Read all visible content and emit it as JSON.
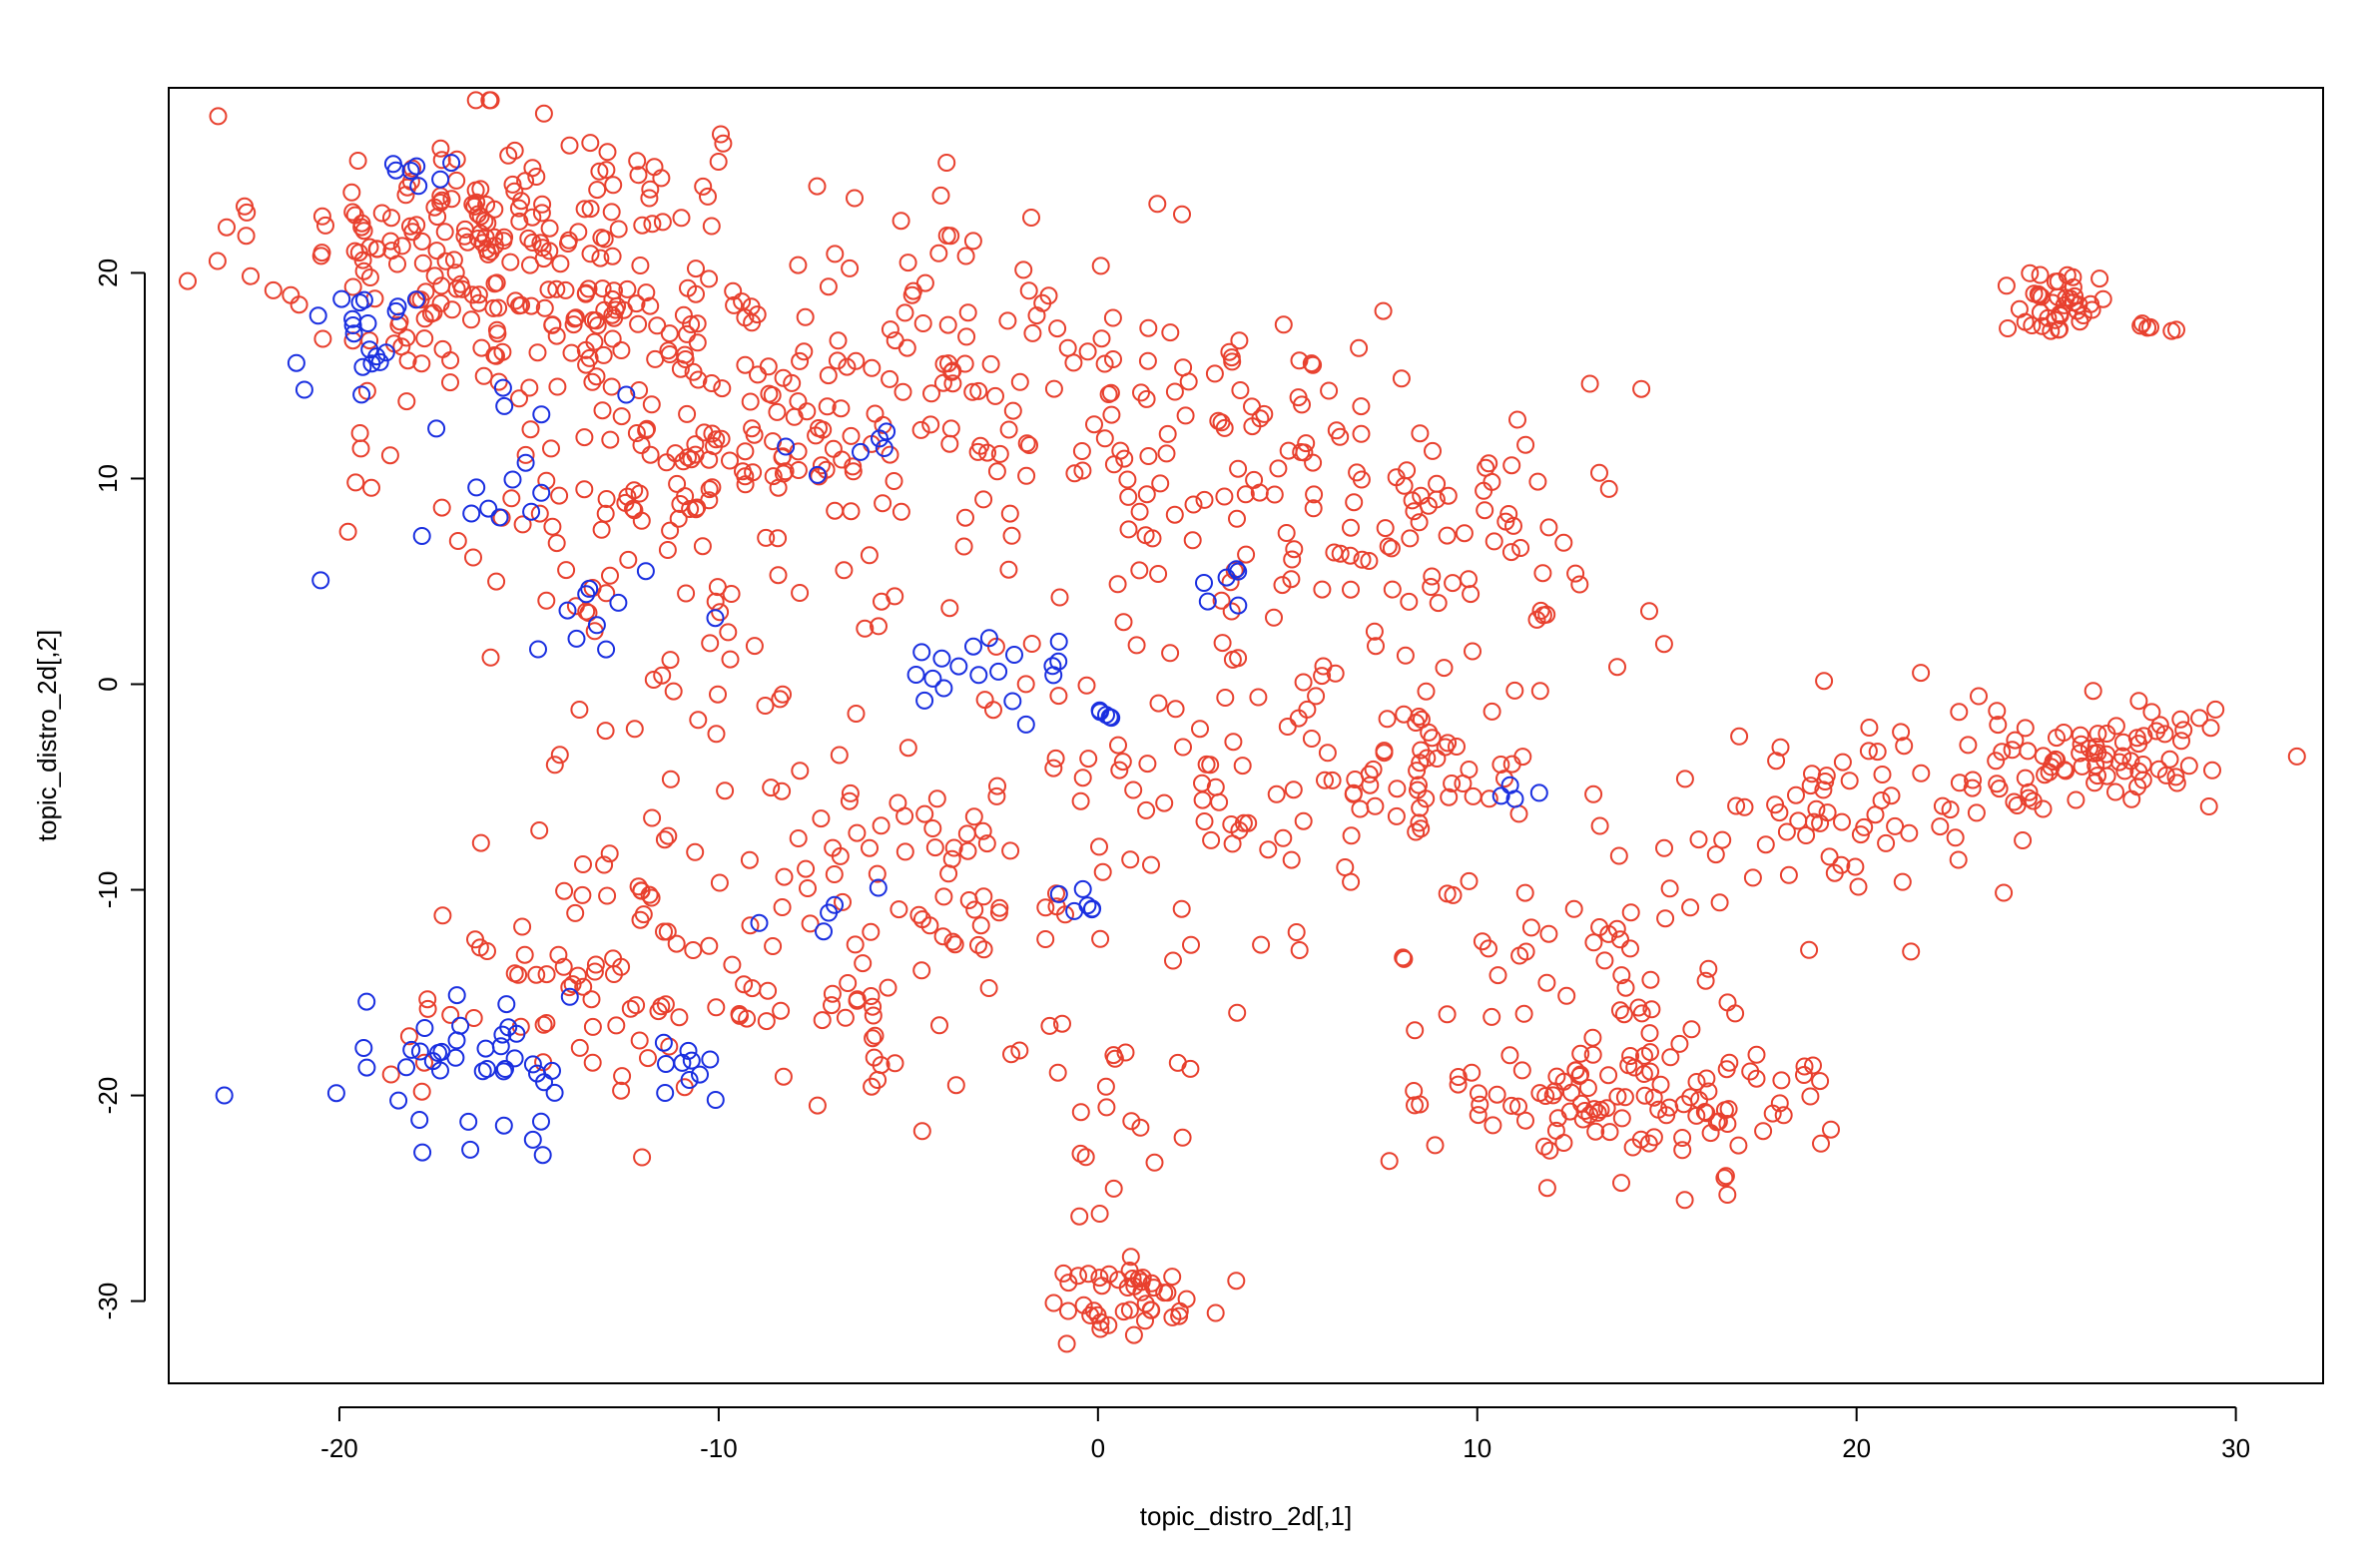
{
  "chart_data": {
    "type": "scatter",
    "title": "",
    "xlabel": "topic_distro_2d[,1]",
    "ylabel": "topic_distro_2d[,2]",
    "xlim": [
      -24.5,
      32.3
    ],
    "ylim": [
      -34.0,
      29.0
    ],
    "xticks": [
      -20,
      -10,
      0,
      10,
      20,
      30
    ],
    "xtick_labels": [
      "-20",
      "-10",
      "0",
      "10",
      "20",
      "30"
    ],
    "yticks": [
      -30,
      -20,
      -10,
      0,
      10,
      20
    ],
    "ytick_labels": [
      "-30",
      "-20",
      "-10",
      "0",
      "10",
      "20"
    ],
    "grid": false,
    "marker": "open-circle",
    "series": [
      {
        "color": "#e8402e",
        "clusters": [
          {
            "cx": -16.0,
            "cy": 21.0,
            "sx": 3.5,
            "sy": 4.0,
            "n": 230
          },
          {
            "cx": -11.0,
            "cy": 11.0,
            "sx": 4.0,
            "sy": 5.0,
            "n": 150
          },
          {
            "cx": -4.0,
            "cy": 16.0,
            "sx": 5.0,
            "sy": 5.0,
            "n": 130
          },
          {
            "cx": 4.5,
            "cy": 10.0,
            "sx": 4.0,
            "sy": 5.0,
            "n": 110
          },
          {
            "cx": 10.0,
            "cy": 6.0,
            "sx": 2.5,
            "sy": 4.0,
            "n": 50
          },
          {
            "cx": -6.0,
            "cy": -5.0,
            "sx": 5.0,
            "sy": 7.0,
            "n": 130
          },
          {
            "cx": 4.0,
            "cy": -6.0,
            "sx": 4.0,
            "sy": 5.0,
            "n": 70
          },
          {
            "cx": 8.5,
            "cy": -4.0,
            "sx": 2.0,
            "sy": 2.0,
            "n": 40
          },
          {
            "cx": -13.0,
            "cy": -15.0,
            "sx": 3.0,
            "sy": 3.5,
            "n": 70
          },
          {
            "cx": -5.0,
            "cy": -17.0,
            "sx": 3.0,
            "sy": 3.0,
            "n": 40
          },
          {
            "cx": 0.8,
            "cy": -30.0,
            "sx": 1.3,
            "sy": 1.3,
            "n": 45
          },
          {
            "cx": 1.0,
            "cy": -22.0,
            "sx": 0.8,
            "sy": 2.0,
            "n": 10
          },
          {
            "cx": 14.0,
            "cy": -20.0,
            "sx": 3.0,
            "sy": 2.2,
            "n": 120
          },
          {
            "cx": 13.5,
            "cy": -12.0,
            "sx": 2.5,
            "sy": 3.0,
            "n": 40
          },
          {
            "cx": 26.5,
            "cy": -3.5,
            "sx": 2.3,
            "sy": 1.6,
            "n": 80
          },
          {
            "cx": 20.0,
            "cy": -6.5,
            "sx": 3.0,
            "sy": 2.5,
            "n": 70
          },
          {
            "cx": 25.3,
            "cy": 18.5,
            "sx": 0.8,
            "sy": 1.0,
            "n": 40
          },
          {
            "cx": 27.8,
            "cy": 17.3,
            "sx": 0.3,
            "sy": 0.2,
            "n": 6
          }
        ]
      },
      {
        "color": "#1a2fe0",
        "clusters": [
          {
            "cx": -19.5,
            "cy": 17.0,
            "sx": 1.2,
            "sy": 1.5,
            "n": 20
          },
          {
            "cx": -17.5,
            "cy": 25.3,
            "sx": 0.8,
            "sy": 0.6,
            "n": 7
          },
          {
            "cx": -15.5,
            "cy": 11.0,
            "sx": 1.5,
            "sy": 2.5,
            "n": 15
          },
          {
            "cx": -16.0,
            "cy": -18.5,
            "sx": 2.0,
            "sy": 2.0,
            "n": 45
          },
          {
            "cx": -13.0,
            "cy": 2.0,
            "sx": 1.5,
            "sy": 1.5,
            "n": 10
          },
          {
            "cx": -4.0,
            "cy": 0.5,
            "sx": 2.0,
            "sy": 1.5,
            "n": 18
          },
          {
            "cx": 0.0,
            "cy": -1.5,
            "sx": 0.4,
            "sy": 0.4,
            "n": 5
          },
          {
            "cx": -0.3,
            "cy": -10.5,
            "sx": 0.4,
            "sy": 0.6,
            "n": 6
          },
          {
            "cx": 3.5,
            "cy": 5.0,
            "sx": 1.0,
            "sy": 0.8,
            "n": 6
          },
          {
            "cx": -6.0,
            "cy": 11.0,
            "sx": 1.0,
            "sy": 1.0,
            "n": 6
          },
          {
            "cx": -11.0,
            "cy": -19.0,
            "sx": 1.0,
            "sy": 1.0,
            "n": 8
          },
          {
            "cx": 11.0,
            "cy": -5.5,
            "sx": 0.3,
            "sy": 0.6,
            "n": 4
          },
          {
            "cx": -7.0,
            "cy": -10.5,
            "sx": 1.0,
            "sy": 1.0,
            "n": 5
          }
        ]
      }
    ]
  }
}
